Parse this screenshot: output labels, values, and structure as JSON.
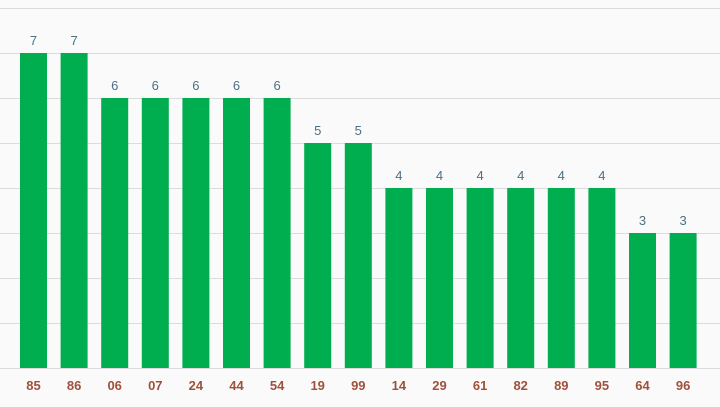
{
  "colors": {
    "bar": "#00ad4f",
    "value_label": "#4d7083",
    "tick_label": "#a0503a",
    "grid": "#dcdcdc",
    "background": "#fafafa"
  },
  "chart_data": {
    "type": "bar",
    "title": "",
    "xlabel": "",
    "ylabel": "",
    "categories": [
      "85",
      "86",
      "06",
      "07",
      "24",
      "44",
      "54",
      "19",
      "99",
      "14",
      "29",
      "61",
      "82",
      "89",
      "95",
      "64",
      "96"
    ],
    "values": [
      7,
      7,
      6,
      6,
      6,
      6,
      6,
      5,
      5,
      4,
      4,
      4,
      4,
      4,
      4,
      3,
      3
    ],
    "ylim": [
      0,
      8
    ],
    "grid": true,
    "legend": "none",
    "data_labels": true
  }
}
